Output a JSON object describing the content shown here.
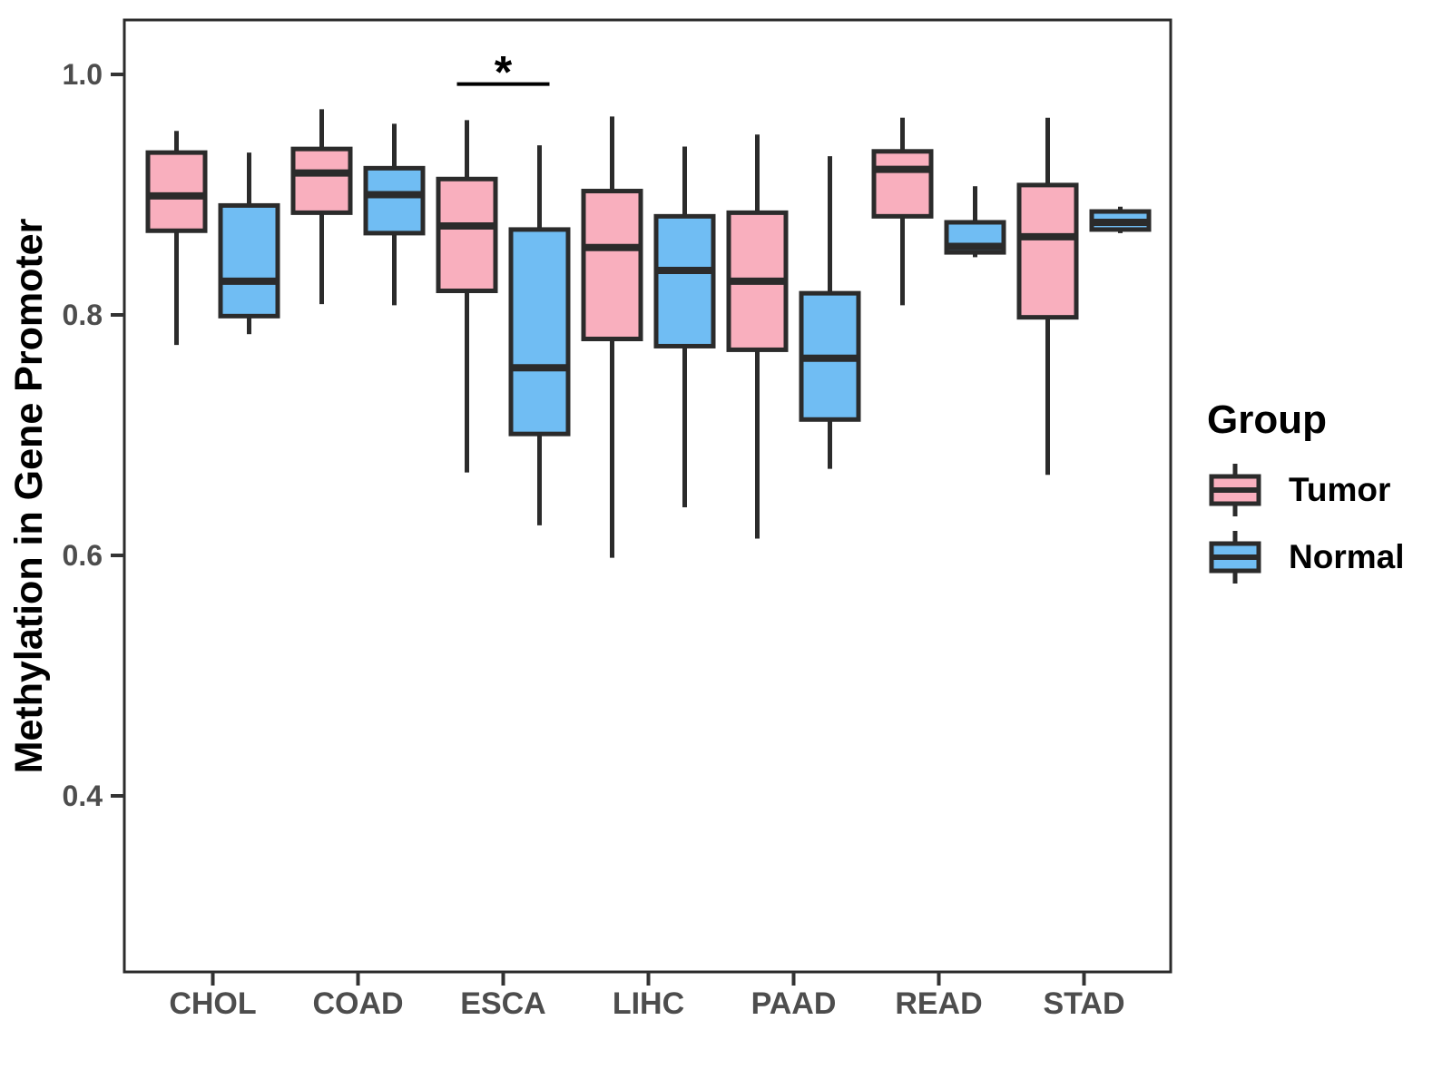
{
  "figure": {
    "background": "#ffffff",
    "panel_border_color": "#2b2b2b",
    "axis_tick_color": "#333333",
    "axis_text_color": "#4d4d4d",
    "axis_title_color": "#000000"
  },
  "chart_data": {
    "type": "box",
    "title": "",
    "xlabel": "",
    "ylabel": "Methylation in Gene Promoter",
    "categories": [
      "CHOL",
      "COAD",
      "ESCA",
      "LIHC",
      "PAAD",
      "READ",
      "STAD"
    ],
    "y_ticks": [
      1.0,
      0.8,
      0.6,
      0.4
    ],
    "ylim": [
      0.25,
      1.05
    ],
    "grid": false,
    "legend": {
      "title": "Group",
      "position": "right",
      "entries": [
        {
          "label": "Tumor",
          "color": "#F9AFBE"
        },
        {
          "label": "Normal",
          "color": "#70BDF3"
        }
      ]
    },
    "series": [
      {
        "name": "Tumor",
        "color": "#F9AFBE",
        "data": [
          {
            "category": "CHOL",
            "whisker_low": 0.775,
            "q1": 0.87,
            "median": 0.899,
            "q3": 0.935,
            "whisker_high": 0.953
          },
          {
            "category": "COAD",
            "whisker_low": 0.809,
            "q1": 0.885,
            "median": 0.918,
            "q3": 0.938,
            "whisker_high": 0.971
          },
          {
            "category": "ESCA",
            "whisker_low": 0.669,
            "q1": 0.82,
            "median": 0.874,
            "q3": 0.913,
            "whisker_high": 0.962
          },
          {
            "category": "LIHC",
            "whisker_low": 0.598,
            "q1": 0.78,
            "median": 0.856,
            "q3": 0.903,
            "whisker_high": 0.965
          },
          {
            "category": "PAAD",
            "whisker_low": 0.614,
            "q1": 0.771,
            "median": 0.828,
            "q3": 0.885,
            "whisker_high": 0.95
          },
          {
            "category": "READ",
            "whisker_low": 0.808,
            "q1": 0.882,
            "median": 0.921,
            "q3": 0.936,
            "whisker_high": 0.964
          },
          {
            "category": "STAD",
            "whisker_low": 0.667,
            "q1": 0.798,
            "median": 0.865,
            "q3": 0.908,
            "whisker_high": 0.964
          }
        ]
      },
      {
        "name": "Normal",
        "color": "#70BDF3",
        "data": [
          {
            "category": "CHOL",
            "whisker_low": 0.784,
            "q1": 0.799,
            "median": 0.828,
            "q3": 0.891,
            "whisker_high": 0.935
          },
          {
            "category": "COAD",
            "whisker_low": 0.808,
            "q1": 0.868,
            "median": 0.9,
            "q3": 0.922,
            "whisker_high": 0.959
          },
          {
            "category": "ESCA",
            "whisker_low": 0.625,
            "q1": 0.701,
            "median": 0.756,
            "q3": 0.871,
            "whisker_high": 0.941
          },
          {
            "category": "LIHC",
            "whisker_low": 0.64,
            "q1": 0.774,
            "median": 0.837,
            "q3": 0.882,
            "whisker_high": 0.94
          },
          {
            "category": "PAAD",
            "whisker_low": 0.672,
            "q1": 0.713,
            "median": 0.764,
            "q3": 0.818,
            "whisker_high": 0.932
          },
          {
            "category": "READ",
            "whisker_low": 0.848,
            "q1": 0.852,
            "median": 0.857,
            "q3": 0.877,
            "whisker_high": 0.907
          },
          {
            "category": "STAD",
            "whisker_low": 0.868,
            "q1": 0.871,
            "median": 0.877,
            "q3": 0.886,
            "whisker_high": 0.89
          }
        ]
      }
    ],
    "annotations": [
      {
        "type": "significance",
        "label": "*",
        "category": "ESCA",
        "y": 0.992
      }
    ],
    "box_stroke_color": "#2b2b2b",
    "median_color": "#2b2b2b"
  }
}
